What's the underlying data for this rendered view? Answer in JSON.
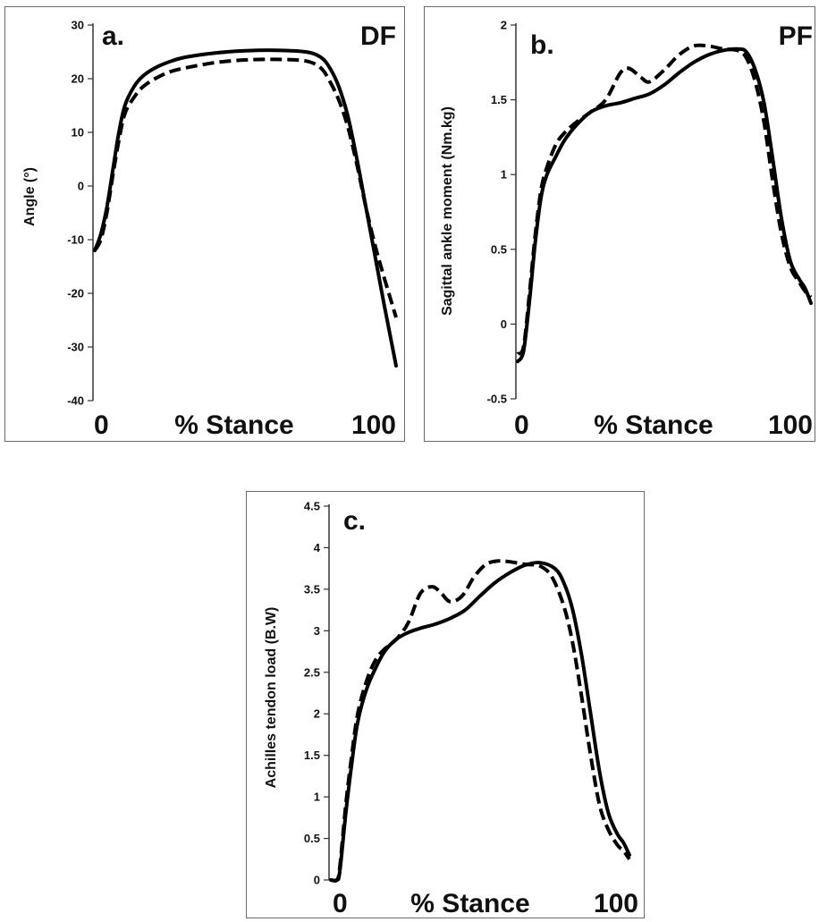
{
  "chart_data": [
    {
      "type": "line",
      "panel_letter": "a.",
      "corner_label": "DF",
      "ylabel": "Angle (°)",
      "x_start_label": "0",
      "x_mid_label": "% Stance",
      "x_end_label": "100",
      "xlim": [
        0,
        100
      ],
      "ylim": [
        -40,
        30
      ],
      "y_ticks": [
        30,
        20,
        10,
        0,
        -10,
        -20,
        -30,
        -40
      ],
      "tick_labels": [
        "30",
        "20",
        "10",
        "0",
        "-10",
        "-20",
        "-30",
        "-40"
      ],
      "series": [
        {
          "style": "solid",
          "x": [
            0,
            2,
            4,
            6,
            8,
            10,
            13,
            16,
            20,
            25,
            30,
            40,
            50,
            60,
            70,
            75,
            78,
            81,
            84,
            87,
            90,
            93,
            96,
            100
          ],
          "y": [
            -12,
            -9,
            -4,
            3,
            10,
            15,
            18.5,
            20.5,
            22,
            23.2,
            24,
            24.8,
            25.2,
            25.3,
            25,
            24,
            22,
            18.5,
            13,
            5,
            -4,
            -13,
            -22,
            -33.5
          ]
        },
        {
          "style": "dashed",
          "x": [
            0,
            2,
            4,
            6,
            8,
            10,
            13,
            16,
            20,
            25,
            30,
            40,
            50,
            60,
            70,
            75,
            78,
            81,
            84,
            87,
            90,
            93,
            96,
            100
          ],
          "y": [
            -12,
            -10,
            -5,
            2,
            8.5,
            13.5,
            16.5,
            18.5,
            20,
            21.3,
            22,
            23,
            23.5,
            23.6,
            23.3,
            22,
            19.5,
            16,
            11,
            4,
            -4,
            -11,
            -17,
            -24.5
          ]
        }
      ]
    },
    {
      "type": "line",
      "panel_letter": "b.",
      "corner_label": "PF",
      "ylabel": "Sagittal ankle moment (Nm.kg)",
      "x_start_label": "0",
      "x_mid_label": "% Stance",
      "x_end_label": "100",
      "xlim": [
        0,
        100
      ],
      "ylim": [
        -0.5,
        2
      ],
      "y_ticks": [
        2,
        1.5,
        1,
        0.5,
        0,
        -0.5
      ],
      "tick_labels": [
        "2",
        "1.5",
        "1",
        "0.5",
        "0",
        "-0.5"
      ],
      "series": [
        {
          "style": "solid",
          "x": [
            0,
            2,
            4,
            6,
            8,
            10,
            13,
            16,
            20,
            25,
            30,
            35,
            40,
            45,
            50,
            55,
            60,
            65,
            70,
            75,
            78,
            81,
            84,
            87,
            90,
            93,
            96,
            98,
            100
          ],
          "y": [
            -0.25,
            -0.18,
            0.15,
            0.55,
            0.85,
            1.0,
            1.12,
            1.23,
            1.33,
            1.42,
            1.46,
            1.48,
            1.51,
            1.54,
            1.6,
            1.68,
            1.75,
            1.8,
            1.83,
            1.84,
            1.82,
            1.7,
            1.48,
            1.1,
            0.7,
            0.42,
            0.3,
            0.24,
            0.14
          ]
        },
        {
          "style": "dashed",
          "x": [
            0,
            2,
            4,
            6,
            8,
            10,
            13,
            16,
            20,
            25,
            30,
            35,
            38,
            42,
            45,
            50,
            55,
            60,
            65,
            70,
            75,
            78,
            81,
            84,
            87,
            90,
            93,
            96,
            98,
            100
          ],
          "y": [
            -0.2,
            -0.15,
            0.2,
            0.6,
            0.9,
            1.05,
            1.2,
            1.28,
            1.35,
            1.42,
            1.5,
            1.68,
            1.71,
            1.65,
            1.62,
            1.7,
            1.8,
            1.86,
            1.86,
            1.84,
            1.83,
            1.78,
            1.62,
            1.35,
            0.95,
            0.6,
            0.38,
            0.28,
            0.22,
            0.18
          ]
        }
      ]
    },
    {
      "type": "line",
      "panel_letter": "c.",
      "ylabel": "Achilles tendon load (B.W)",
      "x_start_label": "0",
      "x_mid_label": "% Stance",
      "x_end_label": "100",
      "xlim": [
        0,
        100
      ],
      "ylim": [
        0,
        4.5
      ],
      "y_ticks": [
        4.5,
        4,
        3.5,
        3,
        2.5,
        2,
        1.5,
        1,
        0.5,
        0
      ],
      "tick_labels": [
        "4.5",
        "4",
        "3.5",
        "3",
        "2.5",
        "2",
        "1.5",
        "1",
        "0.5",
        "0"
      ],
      "series": [
        {
          "style": "solid",
          "x": [
            0,
            2,
            3,
            5,
            7,
            9,
            12,
            15,
            18,
            22,
            26,
            30,
            35,
            40,
            45,
            50,
            55,
            60,
            65,
            70,
            75,
            78,
            81,
            84,
            87,
            90,
            93,
            96,
            98,
            100
          ],
          "y": [
            0.0,
            0.0,
            0.1,
            0.8,
            1.4,
            1.9,
            2.3,
            2.55,
            2.75,
            2.9,
            2.98,
            3.03,
            3.08,
            3.15,
            3.25,
            3.42,
            3.58,
            3.7,
            3.79,
            3.82,
            3.75,
            3.58,
            3.25,
            2.7,
            2.0,
            1.3,
            0.8,
            0.55,
            0.45,
            0.3
          ]
        },
        {
          "style": "dashed",
          "x": [
            0,
            2,
            3,
            5,
            7,
            9,
            12,
            15,
            18,
            22,
            26,
            30,
            34,
            37,
            40,
            44,
            48,
            52,
            56,
            60,
            65,
            70,
            74,
            78,
            81,
            84,
            87,
            90,
            93,
            96,
            98,
            100
          ],
          "y": [
            0.0,
            0.0,
            0.15,
            0.9,
            1.5,
            2.0,
            2.4,
            2.65,
            2.78,
            2.9,
            3.1,
            3.45,
            3.53,
            3.45,
            3.35,
            3.42,
            3.65,
            3.8,
            3.84,
            3.83,
            3.8,
            3.78,
            3.65,
            3.3,
            2.85,
            2.2,
            1.5,
            0.9,
            0.6,
            0.42,
            0.35,
            0.25
          ]
        }
      ]
    }
  ]
}
